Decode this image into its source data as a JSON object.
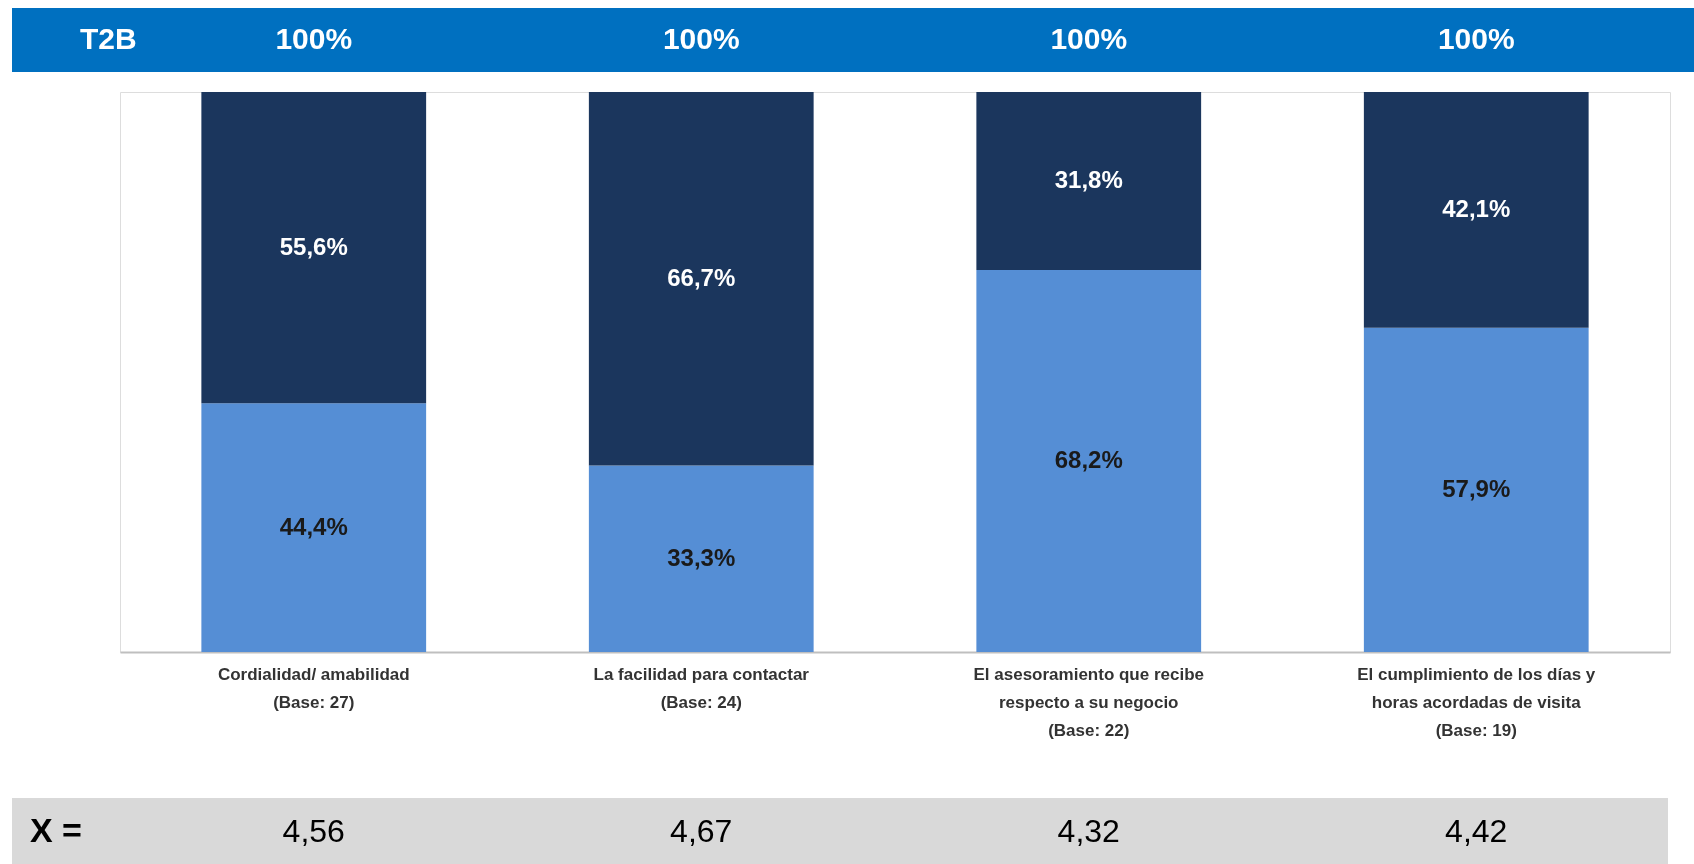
{
  "chart_data": {
    "type": "bar",
    "stacked": true,
    "categories": [
      "Cordialidad/ amabilidad\n(Base: 27)",
      "La facilidad para contactar\n(Base: 24)",
      "El asesoramiento que recibe\nrespecto a su negocio\n(Base: 22)",
      "El cumplimiento de los días y\nhoras acordadas de visita\n(Base: 19)"
    ],
    "series": [
      {
        "color": "#558ed5",
        "values": [
          44.4,
          33.3,
          68.2,
          57.9
        ],
        "value_labels": [
          "44,4%",
          "33,3%",
          "68,2%",
          "57,9%"
        ]
      },
      {
        "color": "#1b365d",
        "values": [
          55.6,
          66.7,
          31.8,
          42.1
        ],
        "value_labels": [
          "55,6%",
          "66,7%",
          "31,8%",
          "42,1%"
        ]
      }
    ],
    "ylim": [
      0,
      100
    ],
    "tick_labels": "x",
    "grid": false,
    "totals": [
      "100%",
      "100%",
      "100%",
      "100%"
    ],
    "annotations": [
      "T2B",
      "X =",
      "4,56",
      "4,67",
      "4,32",
      "4,42"
    ]
  }
}
